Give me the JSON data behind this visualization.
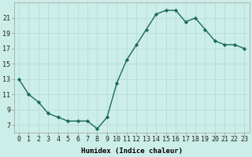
{
  "x": [
    0,
    1,
    2,
    3,
    4,
    5,
    6,
    7,
    8,
    9,
    10,
    11,
    12,
    13,
    14,
    15,
    16,
    17,
    18,
    19,
    20,
    21,
    22,
    23
  ],
  "y": [
    13,
    11,
    10,
    8.5,
    8,
    7.5,
    7.5,
    7.5,
    6.5,
    8,
    12.5,
    15.5,
    17.5,
    19.5,
    21.5,
    22,
    22,
    20.5,
    21,
    19.5,
    18,
    17.5,
    17.5,
    17
  ],
  "line_color": "#1a6b5a",
  "bg_color": "#cceee8",
  "grid_color": "#b8dbd8",
  "xlabel": "Humidex (Indice chaleur)",
  "xlim": [
    -0.5,
    23.5
  ],
  "ylim": [
    6.0,
    23.0
  ],
  "yticks": [
    7,
    9,
    11,
    13,
    15,
    17,
    19,
    21
  ],
  "xticks": [
    0,
    1,
    2,
    3,
    4,
    5,
    6,
    7,
    8,
    9,
    10,
    11,
    12,
    13,
    14,
    15,
    16,
    17,
    18,
    19,
    20,
    21,
    22,
    23
  ],
  "marker": "D",
  "markersize": 2.2,
  "linewidth": 1.0,
  "xlabel_fontsize": 6.5,
  "tick_fontsize": 6.0
}
